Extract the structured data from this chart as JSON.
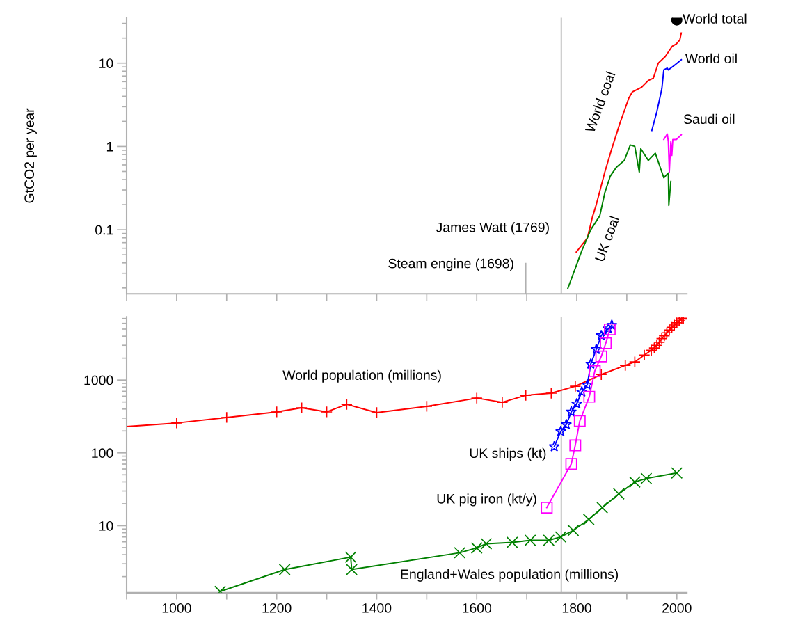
{
  "chart_data": [
    {
      "type": "line",
      "ylabel": "GtCO2 per year",
      "log": "y",
      "xlim": [
        900,
        2020
      ],
      "ylim": [
        0.017,
        35
      ],
      "xticks": [
        {
          "value": 900,
          "label": null
        },
        {
          "value": 1000,
          "label": null
        },
        {
          "value": 1100,
          "label": null
        },
        {
          "value": 1200,
          "label": null
        },
        {
          "value": 1300,
          "label": null
        },
        {
          "value": 1400,
          "label": null
        },
        {
          "value": 1500,
          "label": null
        },
        {
          "value": 1600,
          "label": null
        },
        {
          "value": 1700,
          "label": null
        },
        {
          "value": 1800,
          "label": null
        },
        {
          "value": 1900,
          "label": null
        },
        {
          "value": 2000,
          "label": null
        }
      ],
      "yticks": [
        0.1,
        1,
        10
      ],
      "tick_labels": "y",
      "grid": false,
      "legend": false,
      "marker": "none",
      "ref_lines": [
        {
          "axis": "x",
          "value": 1698,
          "label": "Steam engine (1698)",
          "color": "#b0b0b0"
        },
        {
          "axis": "x",
          "value": 1769,
          "label": "James Watt (1769)",
          "color": "#b0b0b0"
        }
      ],
      "series": [
        {
          "name": "World total",
          "color": "#000000",
          "type": "scatter",
          "marker": "circle",
          "x": [
            2000
          ],
          "values": [
            33
          ]
        },
        {
          "name": "World coal",
          "color": "#ff0000",
          "x": [
            1799,
            1821,
            1831,
            1839,
            1856,
            1870,
            1886,
            1904,
            1911,
            1929,
            1943,
            1953,
            1963,
            1977,
            1991,
            1999,
            2006,
            2009
          ],
          "values": [
            0.054,
            0.079,
            0.14,
            0.2,
            0.49,
            0.94,
            1.88,
            3.8,
            4.5,
            5.1,
            6.2,
            6.6,
            10,
            12,
            16,
            17,
            19,
            23
          ]
        },
        {
          "name": "World oil",
          "color": "#0000ff",
          "x": [
            1950,
            1960,
            1970,
            1974,
            1981,
            1983,
            1995,
            2009
          ],
          "values": [
            1.55,
            2.6,
            4.9,
            8.3,
            8.7,
            8.3,
            9.4,
            11
          ]
        },
        {
          "name": "Saudi oil",
          "color": "#ff00ff",
          "x": [
            1974,
            1981,
            1983,
            1985,
            1988,
            1990,
            1992,
            1999,
            2009
          ],
          "values": [
            1.21,
            1.41,
            1.14,
            0.49,
            1.14,
            0.78,
            1.21,
            1.21,
            1.38
          ]
        },
        {
          "name": "UK coal",
          "color": "#008000",
          "x": [
            1782,
            1810,
            1828,
            1846,
            1856,
            1867,
            1879,
            1895,
            1907,
            1916,
            1925,
            1928,
            1943,
            1957,
            1974,
            1983,
            1984,
            1988
          ],
          "values": [
            0.0196,
            0.056,
            0.1,
            0.147,
            0.277,
            0.44,
            0.56,
            0.68,
            1.04,
            1.0,
            0.49,
            0.94,
            0.68,
            0.83,
            0.42,
            0.48,
            0.196,
            0.38
          ]
        }
      ]
    },
    {
      "type": "line",
      "log": "y",
      "xlim": [
        900,
        2020
      ],
      "ylim": [
        1.2,
        7400
      ],
      "xticks": [
        {
          "value": 900,
          "label": null
        },
        1000,
        {
          "value": 1100,
          "label": null
        },
        1200,
        {
          "value": 1300,
          "label": null
        },
        1400,
        {
          "value": 1500,
          "label": null
        },
        1600,
        {
          "value": 1700,
          "label": null
        },
        1800,
        {
          "value": 1900,
          "label": null
        },
        2000
      ],
      "yticks": [
        10,
        100,
        1000
      ],
      "grid": false,
      "legend": false,
      "ref_lines": [
        {
          "axis": "x",
          "value": 1769,
          "color": "#b0b0b0"
        }
      ],
      "series": [
        {
          "name": "World population (millions)",
          "color": "#ff0000",
          "marker": "plus",
          "x": [
            900,
            1000,
            1100,
            1200,
            1250,
            1300,
            1340,
            1400,
            1500,
            1600,
            1651,
            1698,
            1749,
            1797,
            1849,
            1897,
            1916,
            1935,
            1949,
            1955,
            1960,
            1965,
            1970,
            1975,
            1980,
            1985,
            1990,
            1995,
            2000,
            2005,
            2010,
            2013
          ],
          "values": [
            230,
            257,
            306,
            365,
            416,
            365,
            464,
            357,
            435,
            565,
            495,
            617,
            660,
            820,
            1190,
            1585,
            1770,
            2200,
            2570,
            2750,
            3000,
            3300,
            3700,
            4050,
            4450,
            4850,
            5300,
            5700,
            6100,
            6500,
            6900,
            7050
          ]
        },
        {
          "name": "UK ships (kt)",
          "color": "#0000ff",
          "marker": "star",
          "x": [
            1755,
            1768,
            1779,
            1789,
            1800,
            1810,
            1821,
            1828,
            1839,
            1849,
            1863,
            1870
          ],
          "values": [
            122,
            197,
            245,
            365,
            474,
            689,
            857,
            1660,
            2640,
            4080,
            5070,
            5650
          ]
        },
        {
          "name": "UK pig iron (kt/y)",
          "color": "#ff00ff",
          "marker": "square",
          "x": [
            1740,
            1789,
            1797,
            1806,
            1825,
            1836,
            1849,
            1858,
            1866
          ],
          "values": [
            17.7,
            70.4,
            127,
            274,
            590,
            1330,
            2110,
            3200,
            4960
          ]
        },
        {
          "name": "England+Wales population (millions)",
          "color": "#008000",
          "marker": "cross",
          "x": [
            1087,
            1216,
            1348,
            1350,
            1566,
            1600,
            1619,
            1671,
            1707,
            1744,
            1768,
            1793,
            1824,
            1851,
            1884,
            1916,
            1939,
            2000
          ],
          "values": [
            1.25,
            2.5,
            3.7,
            2.5,
            4.25,
            4.95,
            5.65,
            5.9,
            6.3,
            6.3,
            7.0,
            8.6,
            12.2,
            17.7,
            27.4,
            39.8,
            44.5,
            53
          ]
        }
      ]
    }
  ]
}
